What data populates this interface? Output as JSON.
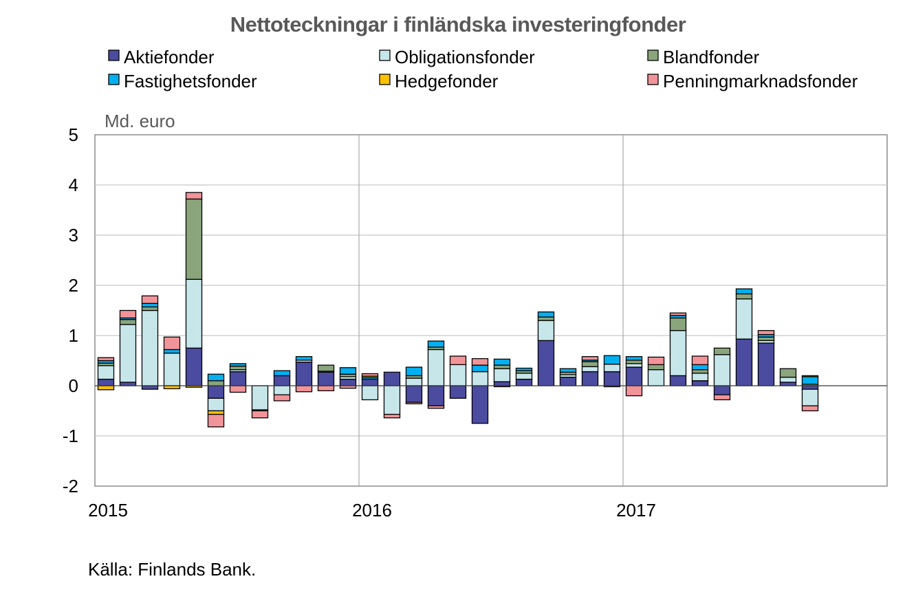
{
  "chart_data": {
    "type": "bar",
    "stacked": true,
    "title": "Nettoteckningar i finländska investeringfonder",
    "ylabel": "Md. euro",
    "ylim": [
      -2,
      5
    ],
    "yticks": [
      "5",
      "4",
      "3",
      "2",
      "1",
      "0",
      "-1",
      "-2"
    ],
    "x_labels": [
      {
        "label": "2015",
        "month_index": 0
      },
      {
        "label": "2016",
        "month_index": 12
      },
      {
        "label": "2017",
        "month_index": 24
      }
    ],
    "months": 36,
    "grid": true,
    "legend_position": "top",
    "series": [
      {
        "name": "Aktiefonder",
        "color": "#4B4BA0",
        "values": [
          0.13,
          0.07,
          -0.07,
          0.0,
          0.75,
          -0.25,
          0.28,
          0.0,
          0.2,
          0.47,
          0.27,
          0.13,
          0.13,
          0.27,
          -0.33,
          -0.4,
          -0.25,
          -0.75,
          0.08,
          0.13,
          0.9,
          0.17,
          0.28,
          0.28,
          0.37,
          0.0,
          0.2,
          0.1,
          -0.18,
          0.93,
          0.85,
          0.07,
          -0.07,
          0,
          0,
          0
        ]
      },
      {
        "name": "Obligationsfonder",
        "color": "#C6E6EA",
        "values": [
          0.27,
          1.15,
          1.5,
          0.65,
          1.37,
          -0.25,
          0.04,
          -0.48,
          -0.18,
          0.04,
          0.02,
          0.05,
          -0.28,
          -0.57,
          0.15,
          0.72,
          0.42,
          0.28,
          0.26,
          0.12,
          0.4,
          0.05,
          0.1,
          0.15,
          0.07,
          0.32,
          0.9,
          0.15,
          0.62,
          0.8,
          0.05,
          0.1,
          -0.33,
          0,
          0,
          0
        ]
      },
      {
        "name": "Blandfonder",
        "color": "#8AA57C",
        "values": [
          0.05,
          0.1,
          0.07,
          0.0,
          1.6,
          0.1,
          0.07,
          0.0,
          0.0,
          0.0,
          0.12,
          0.05,
          0.0,
          0.0,
          0.05,
          0.05,
          0.0,
          0.0,
          0.07,
          0.05,
          0.07,
          0.05,
          0.1,
          0.0,
          0.07,
          0.1,
          0.25,
          0.07,
          0.13,
          0.1,
          0.07,
          0.17,
          0.03,
          0,
          0,
          0
        ]
      },
      {
        "name": "Fastighetsfonder",
        "color": "#00B0F0",
        "values": [
          0.05,
          0.03,
          0.07,
          0.07,
          0.0,
          0.13,
          0.05,
          0.0,
          0.1,
          0.07,
          0.0,
          0.13,
          0.03,
          0.0,
          0.17,
          0.12,
          0.0,
          0.13,
          0.12,
          0.05,
          0.1,
          0.07,
          0.03,
          0.17,
          0.07,
          0.0,
          0.05,
          0.1,
          0.0,
          0.1,
          0.05,
          0.0,
          0.15,
          0,
          0,
          0
        ]
      },
      {
        "name": "Hedgefonder",
        "color": "#FFC000",
        "values": [
          -0.08,
          0.0,
          0.0,
          -0.06,
          -0.03,
          -0.07,
          0.0,
          -0.02,
          0.0,
          0.0,
          0.0,
          0.0,
          0.03,
          0.0,
          0.0,
          0.0,
          0.0,
          0.0,
          0.0,
          0.0,
          0.0,
          0.0,
          0.0,
          0.0,
          0.0,
          0.0,
          0.0,
          0.0,
          0.0,
          0.0,
          0.0,
          0.0,
          0.02,
          0,
          0,
          0
        ]
      },
      {
        "name": "Penningmarknadsfonder",
        "color": "#F19499",
        "values": [
          0.06,
          0.15,
          0.15,
          0.25,
          0.13,
          -0.25,
          -0.13,
          -0.14,
          -0.12,
          -0.12,
          -0.1,
          -0.05,
          0.05,
          -0.07,
          -0.03,
          -0.05,
          0.17,
          0.13,
          -0.02,
          0.0,
          0.0,
          0.0,
          0.07,
          -0.02,
          -0.2,
          0.15,
          0.05,
          0.17,
          -0.1,
          0.0,
          0.08,
          0.0,
          -0.1,
          0,
          0,
          0
        ]
      }
    ]
  },
  "source": "Källa: Finlands Bank."
}
